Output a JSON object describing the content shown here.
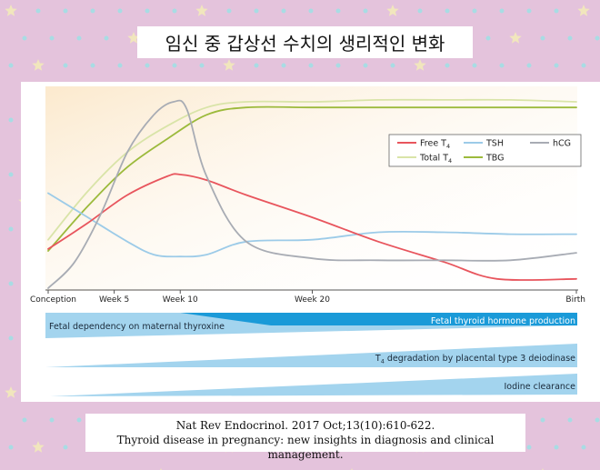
{
  "title": "임신 중 갑상선 수치의 생리적인 변화",
  "caption": {
    "line1": "Nat Rev Endocrinol. 2017 Oct;13(10):610-622.",
    "line2": "Thyroid disease in pregnancy: new insights in diagnosis and clinical management."
  },
  "colors": {
    "background": "#e4c3dc",
    "dots": "#a8dce4",
    "stars": "#f1e6bd",
    "free_t4": "#e8555d",
    "tsh": "#9ccbe8",
    "hcg": "#a8acb4",
    "total_t4": "#d9e4a8",
    "tbg": "#9cba3c",
    "band_light": "#a3d4ee",
    "band_dark": "#1a9ad8"
  },
  "chart_data": {
    "type": "line",
    "x_tick_labels": [
      "Conception",
      "Week 5",
      "Week 10",
      "Week 20",
      "Birth"
    ],
    "x_ticks": [
      0,
      5,
      10,
      20,
      40
    ],
    "xlim": [
      0,
      40
    ],
    "ylim": [
      0,
      100
    ],
    "y_axis_labels": "none",
    "grid": false,
    "legend_position": "top-right",
    "legend": [
      {
        "key": "free_t4",
        "label": "Free T",
        "sub": "4"
      },
      {
        "key": "tsh",
        "label": "TSH",
        "sub": ""
      },
      {
        "key": "hcg",
        "label": "hCG",
        "sub": ""
      },
      {
        "key": "total_t4",
        "label": "Total T",
        "sub": "4"
      },
      {
        "key": "tbg",
        "label": "TBG",
        "sub": ""
      }
    ],
    "series": [
      {
        "key": "free_t4",
        "x": [
          0,
          3,
          6,
          9,
          10,
          12,
          15,
          20,
          25,
          30,
          34,
          40
        ],
        "values": [
          21,
          35,
          50,
          60,
          61,
          58,
          50,
          38,
          25,
          14,
          5,
          5
        ]
      },
      {
        "key": "tsh",
        "x": [
          0,
          3,
          6,
          8,
          10,
          12,
          15,
          20,
          25,
          30,
          35,
          40
        ],
        "values": [
          51,
          38,
          25,
          18,
          17,
          18,
          25,
          26,
          30,
          30,
          29,
          29
        ]
      },
      {
        "key": "hcg",
        "x": [
          0,
          2,
          4,
          6,
          8,
          9.5,
          10.5,
          12,
          15,
          20,
          25,
          30,
          35,
          40
        ],
        "values": [
          0,
          14,
          40,
          73,
          93,
          100,
          96,
          60,
          25,
          16,
          15,
          15,
          15,
          19
        ]
      },
      {
        "key": "total_t4",
        "x": [
          0,
          3,
          6,
          9,
          12,
          15,
          20,
          25,
          30,
          35,
          40
        ],
        "values": [
          26,
          52,
          73,
          87,
          97,
          100,
          100,
          101,
          101,
          101,
          100
        ]
      },
      {
        "key": "tbg",
        "x": [
          0,
          3,
          6,
          9,
          12,
          15,
          20,
          25,
          30,
          35,
          40
        ],
        "values": [
          20,
          44,
          65,
          80,
          93,
          97,
          97,
          97,
          97,
          97,
          97
        ]
      }
    ],
    "bands": [
      {
        "label": "Fetal dependency on maternal thyroxine",
        "direction": "decreasing",
        "align": "left"
      },
      {
        "label": "Fetal thyroid hormone production",
        "direction": "increasing",
        "align": "right",
        "starts_at_week": 10
      },
      {
        "label": "T",
        "sub": "4",
        "label_rest": " degradation by placental type 3 deiodinase",
        "direction": "increasing",
        "align": "right"
      },
      {
        "label": "Iodine clearance",
        "direction": "increasing",
        "align": "right"
      }
    ]
  }
}
